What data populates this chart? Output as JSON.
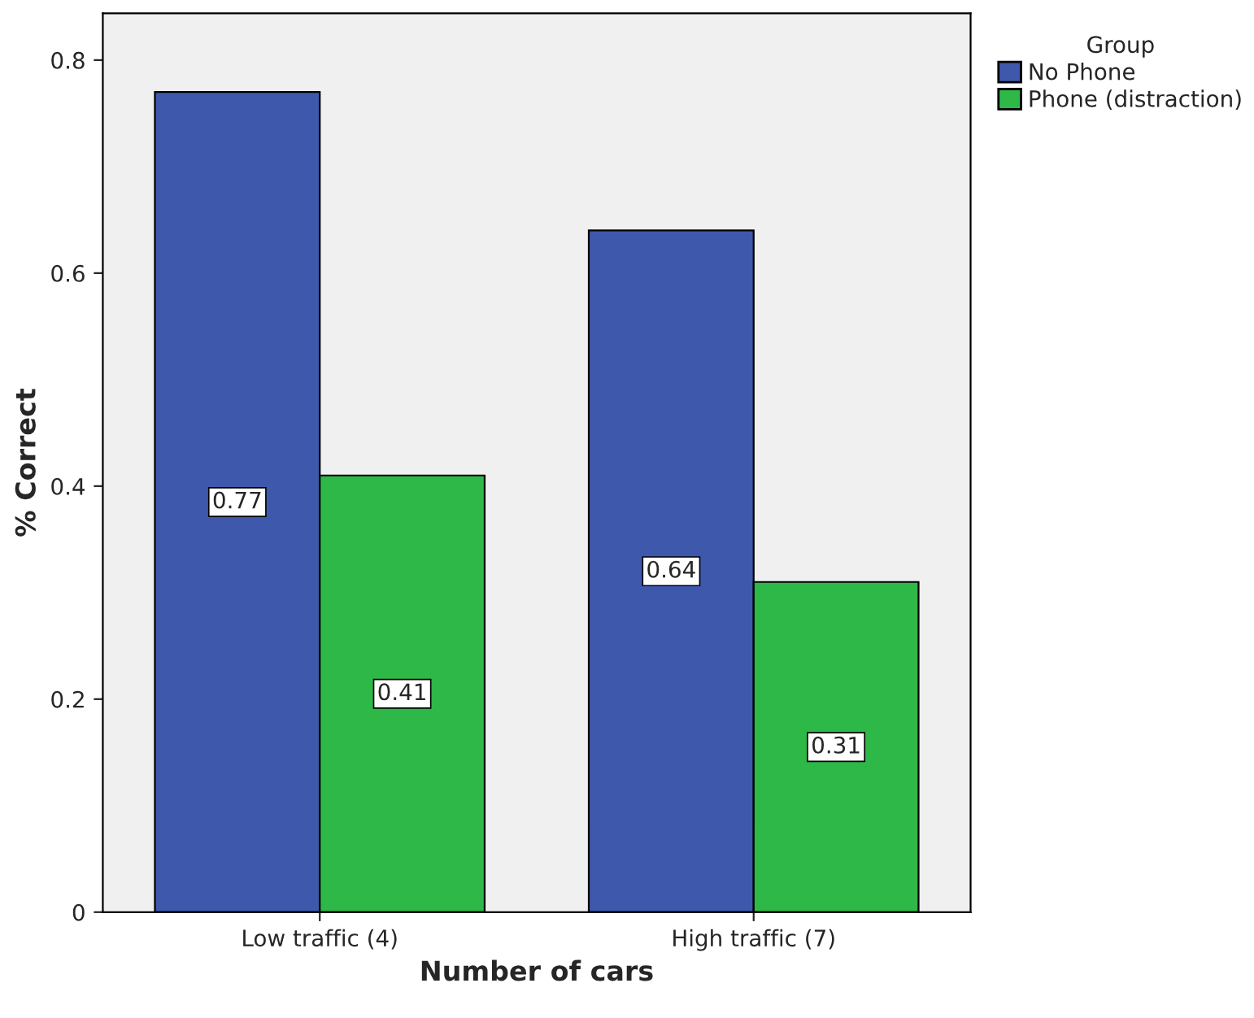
{
  "chart_data": {
    "type": "bar",
    "xlabel": "Number of cars",
    "ylabel": "% Correct",
    "legend_title": "Group",
    "categories": [
      "Low traffic (4)",
      "High traffic (7)"
    ],
    "series": [
      {
        "name": "No Phone",
        "color": "#3e58ac",
        "values": [
          0.77,
          0.64
        ]
      },
      {
        "name": "Phone (distraction)",
        "color": "#2eb848",
        "values": [
          0.41,
          0.31
        ]
      }
    ],
    "ylim": [
      0,
      0.844
    ],
    "yticks": [
      0,
      0.2,
      0.4,
      0.6,
      0.8
    ],
    "data_labels": true,
    "legend": "top right",
    "grid": false
  }
}
